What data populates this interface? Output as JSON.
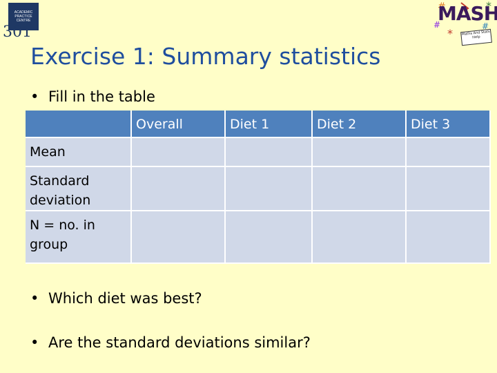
{
  "logo_left": {
    "box_text": "ACADEMIC PRACTICE CENTRE",
    "number": "301"
  },
  "logo_right": {
    "wordmark": "MASH",
    "tagline": "Maths And Stats Help"
  },
  "title": "Exercise 1: Summary statistics",
  "bullets": {
    "fill_table": "Fill in the table",
    "which_diet": "Which diet was best?",
    "sd_similar": "Are the standard deviations similar?"
  },
  "table": {
    "headers": [
      "",
      "Overall",
      "Diet 1",
      "Diet 2",
      "Diet 3"
    ],
    "rows": [
      {
        "label": "Mean",
        "cells": [
          "",
          "",
          "",
          ""
        ]
      },
      {
        "label": "Standard deviation",
        "cells": [
          "",
          "",
          "",
          ""
        ]
      },
      {
        "label": "N = no. in group",
        "cells": [
          "",
          "",
          "",
          ""
        ]
      }
    ]
  }
}
